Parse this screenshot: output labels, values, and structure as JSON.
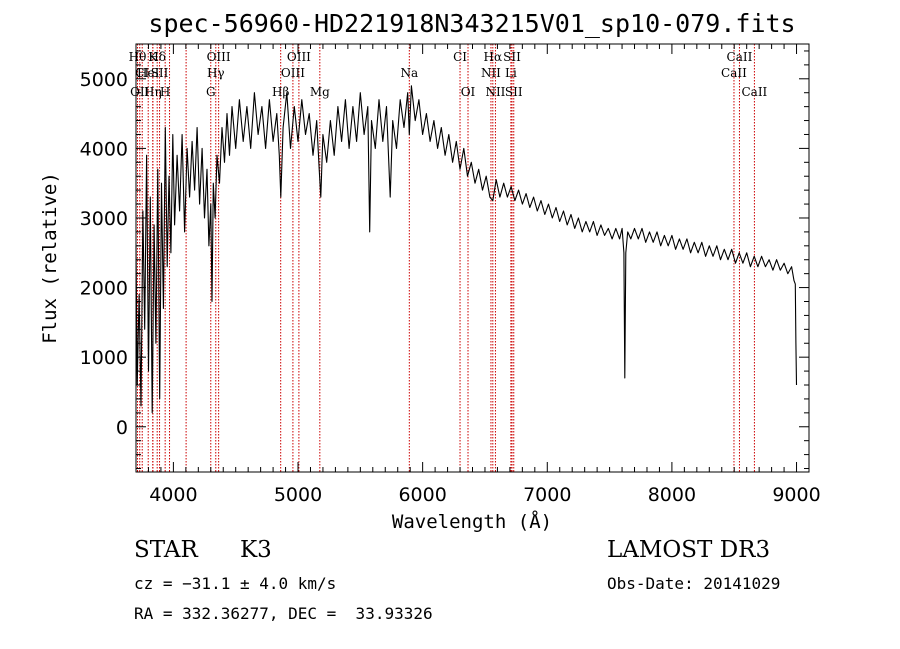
{
  "chart_data": {
    "type": "line",
    "title": "spec-56960-HD221918N343215V01_sp10-079.fits",
    "xlabel": "Wavelength (Å)",
    "ylabel": "Flux (relative)",
    "xlim": [
      3700,
      9100
    ],
    "ylim": [
      -650,
      5500
    ],
    "xticks": [
      4000,
      5000,
      6000,
      7000,
      8000,
      9000
    ],
    "yticks": [
      0,
      1000,
      2000,
      3000,
      4000,
      5000
    ],
    "series": [
      {
        "name": "flux",
        "points": [
          [
            3700,
            2600
          ],
          [
            3710,
            600
          ],
          [
            3725,
            1900
          ],
          [
            3740,
            300
          ],
          [
            3755,
            3100
          ],
          [
            3770,
            1400
          ],
          [
            3785,
            3900
          ],
          [
            3800,
            800
          ],
          [
            3815,
            3300
          ],
          [
            3830,
            200
          ],
          [
            3845,
            2900
          ],
          [
            3860,
            1200
          ],
          [
            3875,
            3700
          ],
          [
            3890,
            400
          ],
          [
            3905,
            3500
          ],
          [
            3920,
            1700
          ],
          [
            3935,
            4300
          ],
          [
            3950,
            2300
          ],
          [
            3965,
            3600
          ],
          [
            3980,
            2500
          ],
          [
            3995,
            4200
          ],
          [
            4010,
            2900
          ],
          [
            4030,
            3900
          ],
          [
            4050,
            3100
          ],
          [
            4070,
            4200
          ],
          [
            4090,
            2800
          ],
          [
            4110,
            4000
          ],
          [
            4130,
            3300
          ],
          [
            4150,
            4100
          ],
          [
            4170,
            3400
          ],
          [
            4190,
            4300
          ],
          [
            4210,
            3200
          ],
          [
            4230,
            4000
          ],
          [
            4250,
            3000
          ],
          [
            4270,
            3700
          ],
          [
            4285,
            2600
          ],
          [
            4300,
            3200
          ],
          [
            4310,
            1800
          ],
          [
            4320,
            3500
          ],
          [
            4335,
            3000
          ],
          [
            4350,
            3900
          ],
          [
            4370,
            3500
          ],
          [
            4390,
            4300
          ],
          [
            4410,
            3800
          ],
          [
            4430,
            4500
          ],
          [
            4450,
            3900
          ],
          [
            4470,
            4600
          ],
          [
            4500,
            4000
          ],
          [
            4530,
            4700
          ],
          [
            4560,
            4100
          ],
          [
            4590,
            4600
          ],
          [
            4620,
            4000
          ],
          [
            4650,
            4800
          ],
          [
            4680,
            4200
          ],
          [
            4710,
            4600
          ],
          [
            4740,
            4000
          ],
          [
            4770,
            4700
          ],
          [
            4800,
            4100
          ],
          [
            4830,
            4500
          ],
          [
            4850,
            3900
          ],
          [
            4862,
            3300
          ],
          [
            4880,
            4300
          ],
          [
            4910,
            4800
          ],
          [
            4940,
            4000
          ],
          [
            4970,
            4600
          ],
          [
            5000,
            4100
          ],
          [
            5030,
            4700
          ],
          [
            5060,
            4200
          ],
          [
            5090,
            4500
          ],
          [
            5120,
            3900
          ],
          [
            5150,
            4400
          ],
          [
            5170,
            3700
          ],
          [
            5183,
            3300
          ],
          [
            5200,
            4200
          ],
          [
            5230,
            3800
          ],
          [
            5260,
            4400
          ],
          [
            5290,
            3900
          ],
          [
            5320,
            4600
          ],
          [
            5350,
            4100
          ],
          [
            5380,
            4700
          ],
          [
            5410,
            4000
          ],
          [
            5440,
            4600
          ],
          [
            5470,
            4100
          ],
          [
            5500,
            4800
          ],
          [
            5530,
            4200
          ],
          [
            5560,
            4600
          ],
          [
            5575,
            2800
          ],
          [
            5590,
            4400
          ],
          [
            5620,
            4000
          ],
          [
            5650,
            4700
          ],
          [
            5680,
            4100
          ],
          [
            5710,
            4600
          ],
          [
            5740,
            3300
          ],
          [
            5760,
            4400
          ],
          [
            5790,
            4000
          ],
          [
            5820,
            4700
          ],
          [
            5850,
            4300
          ],
          [
            5880,
            4800
          ],
          [
            5893,
            4200
          ],
          [
            5910,
            4900
          ],
          [
            5940,
            4400
          ],
          [
            5970,
            4700
          ],
          [
            6000,
            4200
          ],
          [
            6030,
            4500
          ],
          [
            6060,
            4100
          ],
          [
            6090,
            4400
          ],
          [
            6120,
            4000
          ],
          [
            6150,
            4300
          ],
          [
            6180,
            3900
          ],
          [
            6210,
            4200
          ],
          [
            6240,
            3800
          ],
          [
            6270,
            4100
          ],
          [
            6300,
            3700
          ],
          [
            6330,
            4000
          ],
          [
            6360,
            3600
          ],
          [
            6390,
            3800
          ],
          [
            6420,
            3500
          ],
          [
            6450,
            3700
          ],
          [
            6480,
            3400
          ],
          [
            6510,
            3600
          ],
          [
            6540,
            3300
          ],
          [
            6563,
            3250
          ],
          [
            6590,
            3550
          ],
          [
            6620,
            3300
          ],
          [
            6650,
            3500
          ],
          [
            6680,
            3300
          ],
          [
            6710,
            3450
          ],
          [
            6740,
            3250
          ],
          [
            6770,
            3400
          ],
          [
            6800,
            3200
          ],
          [
            6830,
            3350
          ],
          [
            6860,
            3150
          ],
          [
            6890,
            3300
          ],
          [
            6920,
            3100
          ],
          [
            6950,
            3250
          ],
          [
            6980,
            3050
          ],
          [
            7010,
            3200
          ],
          [
            7040,
            3000
          ],
          [
            7070,
            3150
          ],
          [
            7100,
            2950
          ],
          [
            7130,
            3100
          ],
          [
            7160,
            2900
          ],
          [
            7190,
            3050
          ],
          [
            7220,
            2850
          ],
          [
            7250,
            3000
          ],
          [
            7280,
            2800
          ],
          [
            7310,
            2950
          ],
          [
            7340,
            2800
          ],
          [
            7370,
            2950
          ],
          [
            7400,
            2750
          ],
          [
            7430,
            2900
          ],
          [
            7460,
            2750
          ],
          [
            7490,
            2850
          ],
          [
            7520,
            2700
          ],
          [
            7550,
            2850
          ],
          [
            7580,
            2700
          ],
          [
            7600,
            2850
          ],
          [
            7615,
            2500
          ],
          [
            7622,
            700
          ],
          [
            7630,
            2500
          ],
          [
            7645,
            2800
          ],
          [
            7670,
            2700
          ],
          [
            7700,
            2850
          ],
          [
            7730,
            2700
          ],
          [
            7760,
            2850
          ],
          [
            7790,
            2650
          ],
          [
            7820,
            2800
          ],
          [
            7850,
            2650
          ],
          [
            7880,
            2800
          ],
          [
            7910,
            2600
          ],
          [
            7940,
            2750
          ],
          [
            7970,
            2600
          ],
          [
            8000,
            2750
          ],
          [
            8030,
            2550
          ],
          [
            8060,
            2700
          ],
          [
            8090,
            2550
          ],
          [
            8120,
            2700
          ],
          [
            8150,
            2500
          ],
          [
            8180,
            2650
          ],
          [
            8210,
            2500
          ],
          [
            8240,
            2650
          ],
          [
            8270,
            2450
          ],
          [
            8300,
            2600
          ],
          [
            8330,
            2450
          ],
          [
            8360,
            2600
          ],
          [
            8390,
            2400
          ],
          [
            8420,
            2550
          ],
          [
            8450,
            2400
          ],
          [
            8480,
            2550
          ],
          [
            8510,
            2350
          ],
          [
            8540,
            2500
          ],
          [
            8570,
            2350
          ],
          [
            8600,
            2500
          ],
          [
            8630,
            2300
          ],
          [
            8660,
            2450
          ],
          [
            8690,
            2300
          ],
          [
            8720,
            2450
          ],
          [
            8750,
            2300
          ],
          [
            8780,
            2400
          ],
          [
            8810,
            2250
          ],
          [
            8840,
            2400
          ],
          [
            8870,
            2250
          ],
          [
            8900,
            2350
          ],
          [
            8930,
            2200
          ],
          [
            8960,
            2300
          ],
          [
            8980,
            2100
          ],
          [
            8990,
            2050
          ],
          [
            8995,
            1200
          ],
          [
            9000,
            600
          ]
        ]
      }
    ],
    "line_markers": [
      {
        "wavelength": 3712,
        "row": 1,
        "label": "Hθ"
      },
      {
        "wavelength": 3730,
        "row": 3,
        "label": "OII"
      },
      {
        "wavelength": 3750,
        "row": 2,
        "label": "CI"
      },
      {
        "wavelength": 3798,
        "row": 2,
        "label": "HeI"
      },
      {
        "wavelength": 3835,
        "row": 1,
        "label": "K"
      },
      {
        "wavelength": 3835,
        "row": 3,
        "label": "Hη"
      },
      {
        "wavelength": 3870,
        "row": 1,
        "label": "Hδ"
      },
      {
        "wavelength": 3889,
        "row": 2,
        "label": "SII"
      },
      {
        "wavelength": 3934,
        "row": 3,
        "label": "H"
      },
      {
        "wavelength": 3969,
        "row": 0,
        "label": ""
      },
      {
        "wavelength": 4102,
        "row": 0,
        "label": ""
      },
      {
        "wavelength": 4300,
        "row": 3,
        "label": "G"
      },
      {
        "wavelength": 4340,
        "row": 2,
        "label": "Hγ"
      },
      {
        "wavelength": 4363,
        "row": 1,
        "label": "OIII"
      },
      {
        "wavelength": 4861,
        "row": 3,
        "label": "Hβ"
      },
      {
        "wavelength": 4959,
        "row": 2,
        "label": "OIII"
      },
      {
        "wavelength": 5007,
        "row": 1,
        "label": "OIII"
      },
      {
        "wavelength": 5175,
        "row": 3,
        "label": "Mg"
      },
      {
        "wavelength": 5893,
        "row": 2,
        "label": "Na"
      },
      {
        "wavelength": 6300,
        "row": 1,
        "label": "CI"
      },
      {
        "wavelength": 6364,
        "row": 3,
        "label": "OI"
      },
      {
        "wavelength": 6548,
        "row": 2,
        "label": "NII"
      },
      {
        "wavelength": 6563,
        "row": 1,
        "label": "Hα"
      },
      {
        "wavelength": 6584,
        "row": 3,
        "label": "NII"
      },
      {
        "wavelength": 6708,
        "row": 2,
        "label": "Li"
      },
      {
        "wavelength": 6717,
        "row": 1,
        "label": "SII"
      },
      {
        "wavelength": 6731,
        "row": 3,
        "label": "SII"
      },
      {
        "wavelength": 8498,
        "row": 2,
        "label": "CaII"
      },
      {
        "wavelength": 8542,
        "row": 1,
        "label": "CaII"
      },
      {
        "wavelength": 8662,
        "row": 3,
        "label": "CaII"
      }
    ],
    "colors": {
      "spectrum": "#000000",
      "marker": "#cc0000",
      "frame": "#000000"
    }
  },
  "info": {
    "class": "STAR",
    "subclass": "K3",
    "survey": "LAMOST DR3",
    "cz": "cz = −31.1 ± 4.0 km/s",
    "obs_date": "Obs-Date: 20141029",
    "coords": "RA = 332.36277, DEC =  33.93326"
  }
}
